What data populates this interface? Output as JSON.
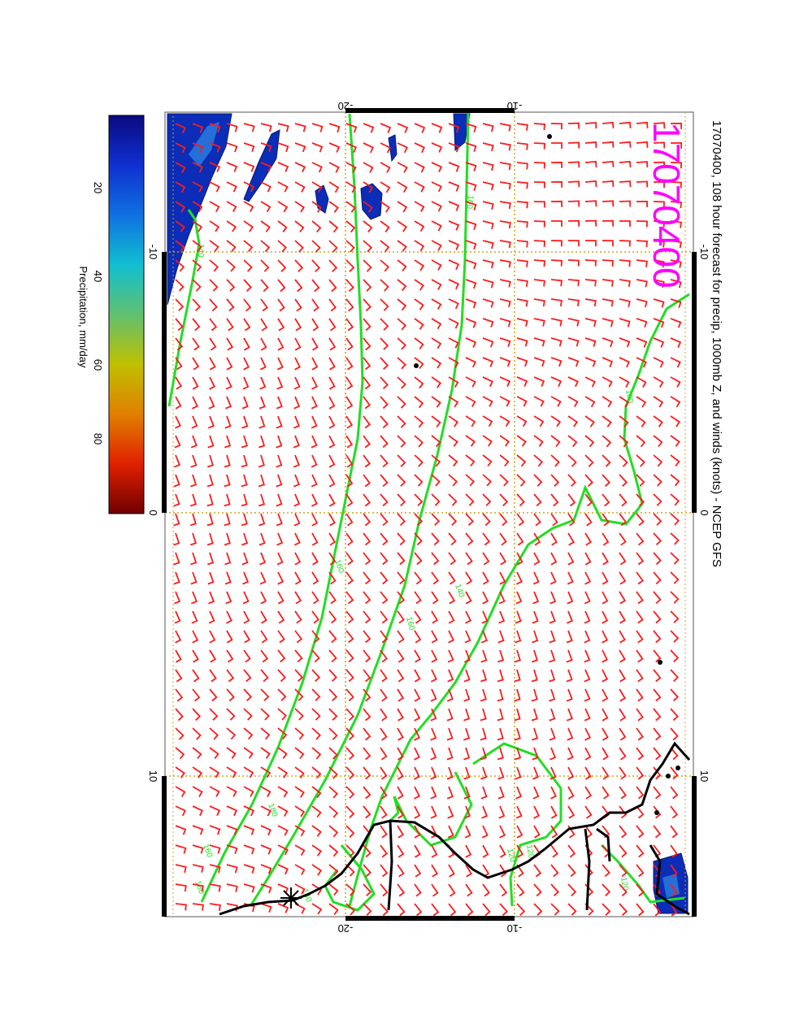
{
  "title": "17070400, 108 hour forecast for precip, 1000mb Z, and winds (knots) - NCEP GFS",
  "stamp": "17070400",
  "axes": {
    "top_ticks": [
      "-20",
      "-10"
    ],
    "bottom_ticks": [
      "-20",
      "-10"
    ],
    "left_ticks": [
      "-10",
      "0",
      "10"
    ],
    "right_ticks": [
      "-10",
      "0",
      "10"
    ]
  },
  "colorbar": {
    "label": "Precipitation, mm/day",
    "ticks": [
      "20",
      "40",
      "60",
      "80"
    ],
    "stops": [
      "#0a0a80",
      "#1030d0",
      "#1070e0",
      "#10c0d0",
      "#60c070",
      "#c0c000",
      "#e08000",
      "#e02000",
      "#700000"
    ]
  },
  "contours": {
    "labels": [
      "140",
      "140",
      "120",
      "140",
      "160",
      "180",
      "160",
      "160",
      "120",
      "100",
      "160",
      "180",
      "120"
    ],
    "color": "#22dd22"
  },
  "colors": {
    "wind": "#ff1a1a",
    "coast": "#000000",
    "grid": "#d4a017",
    "stamp": "#ff00ff",
    "precip": "#0b2db8"
  }
}
